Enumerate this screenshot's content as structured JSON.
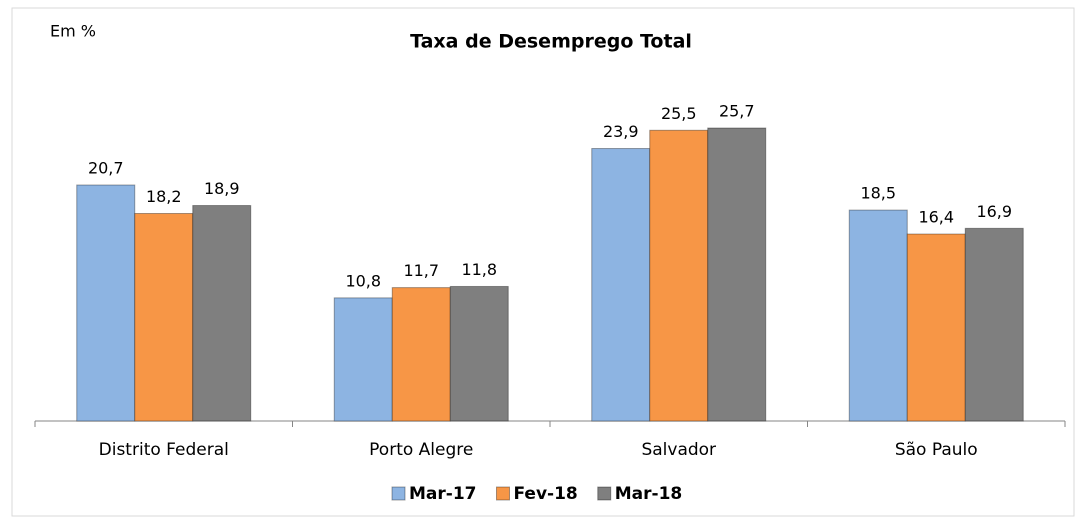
{
  "chart_data": {
    "type": "bar",
    "title": "Taxa de Desemprego Total",
    "unit_label": "Em %",
    "categories": [
      "Distrito Federal",
      "Porto Alegre",
      "Salvador",
      "São Paulo"
    ],
    "series": [
      {
        "name": "Mar-17",
        "color": "#8db4e2",
        "values": [
          20.7,
          10.8,
          23.9,
          18.5
        ],
        "value_labels": [
          "20,7",
          "10,8",
          "23,9",
          "18,5"
        ]
      },
      {
        "name": "Fev-18",
        "color": "#f79646",
        "values": [
          18.2,
          11.7,
          25.5,
          16.4
        ],
        "value_labels": [
          "18,2",
          "11,7",
          "25,5",
          "16,4"
        ]
      },
      {
        "name": "Mar-18",
        "color": "#7f7f7f",
        "values": [
          18.9,
          11.8,
          25.7,
          16.9
        ],
        "value_labels": [
          "18,9",
          "11,8",
          "25,7",
          "16,9"
        ]
      }
    ]
  }
}
